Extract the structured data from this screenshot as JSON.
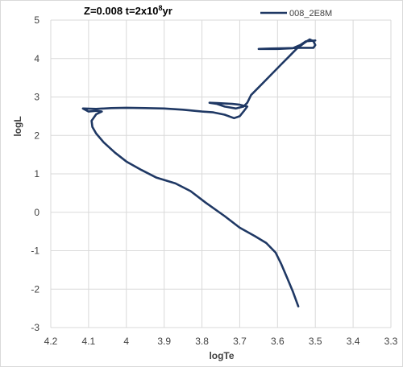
{
  "chart_data": {
    "type": "line",
    "title": {
      "prefix": "Z=0.008 t=2x10",
      "superscript": "8",
      "suffix": "yr"
    },
    "xlabel": "logTe",
    "ylabel": "logL",
    "xlim": [
      4.2,
      3.3
    ],
    "x_reversed": true,
    "ylim": [
      -3,
      5
    ],
    "x_ticks": [
      4.2,
      4.1,
      4.0,
      3.9,
      3.8,
      3.7,
      3.6,
      3.5,
      3.4,
      3.3
    ],
    "x_tick_labels": [
      "4.2",
      "4.1",
      "4",
      "3.9",
      "3.8",
      "3.7",
      "3.6",
      "3.5",
      "3.4",
      "3.3"
    ],
    "y_ticks": [
      5,
      4,
      3,
      2,
      1,
      0,
      -1,
      -2,
      -3
    ],
    "y_tick_labels": [
      "5",
      "4",
      "3",
      "2",
      "1",
      "0",
      "-1",
      "-2",
      "-3"
    ],
    "grid": true,
    "legend_position": "top-right",
    "color": "#1f3864",
    "series": [
      {
        "name": "008_2E8M",
        "points": [
          [
            3.545,
            -2.45
          ],
          [
            3.56,
            -2.05
          ],
          [
            3.575,
            -1.7
          ],
          [
            3.59,
            -1.35
          ],
          [
            3.605,
            -1.05
          ],
          [
            3.63,
            -0.8
          ],
          [
            3.66,
            -0.62
          ],
          [
            3.7,
            -0.4
          ],
          [
            3.74,
            -0.1
          ],
          [
            3.79,
            0.25
          ],
          [
            3.83,
            0.55
          ],
          [
            3.87,
            0.75
          ],
          [
            3.92,
            0.9
          ],
          [
            3.96,
            1.1
          ],
          [
            4.0,
            1.32
          ],
          [
            4.03,
            1.55
          ],
          [
            4.06,
            1.82
          ],
          [
            4.08,
            2.05
          ],
          [
            4.09,
            2.22
          ],
          [
            4.092,
            2.38
          ],
          [
            4.08,
            2.55
          ],
          [
            4.065,
            2.62
          ],
          [
            4.08,
            2.64
          ],
          [
            4.1,
            2.62
          ],
          [
            4.115,
            2.7
          ],
          [
            4.08,
            2.69
          ],
          [
            4.04,
            2.71
          ],
          [
            4.0,
            2.72
          ],
          [
            3.95,
            2.71
          ],
          [
            3.9,
            2.7
          ],
          [
            3.85,
            2.67
          ],
          [
            3.8,
            2.62
          ],
          [
            3.77,
            2.6
          ],
          [
            3.74,
            2.54
          ],
          [
            3.715,
            2.45
          ],
          [
            3.7,
            2.5
          ],
          [
            3.69,
            2.62
          ],
          [
            3.68,
            2.75
          ],
          [
            3.7,
            2.8
          ],
          [
            3.72,
            2.82
          ],
          [
            3.76,
            2.84
          ],
          [
            3.78,
            2.85
          ],
          [
            3.76,
            2.82
          ],
          [
            3.74,
            2.75
          ],
          [
            3.71,
            2.7
          ],
          [
            3.69,
            2.75
          ],
          [
            3.68,
            2.85
          ],
          [
            3.67,
            3.05
          ],
          [
            3.65,
            3.25
          ],
          [
            3.63,
            3.45
          ],
          [
            3.61,
            3.65
          ],
          [
            3.59,
            3.85
          ],
          [
            3.57,
            4.05
          ],
          [
            3.55,
            4.25
          ],
          [
            3.53,
            4.4
          ],
          [
            3.515,
            4.5
          ],
          [
            3.505,
            4.45
          ],
          [
            3.5,
            4.35
          ],
          [
            3.505,
            4.28
          ],
          [
            3.52,
            4.28
          ],
          [
            3.54,
            4.28
          ],
          [
            3.58,
            4.27
          ],
          [
            3.62,
            4.26
          ],
          [
            3.65,
            4.25
          ],
          [
            3.6,
            4.25
          ],
          [
            3.56,
            4.27
          ],
          [
            3.54,
            4.35
          ],
          [
            3.525,
            4.45
          ],
          [
            3.5,
            4.47
          ]
        ]
      }
    ]
  }
}
